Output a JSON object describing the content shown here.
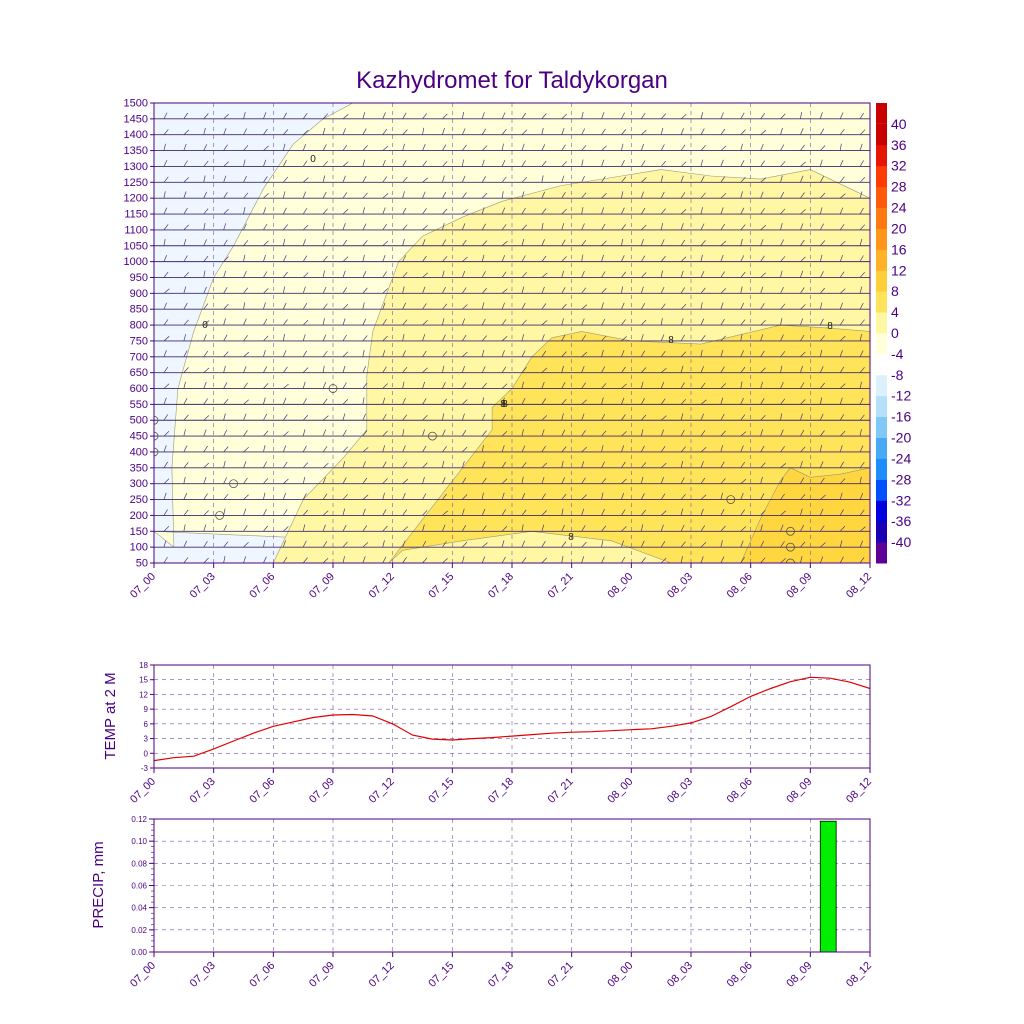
{
  "title": "Kazhydromet for Taldykorgan",
  "colors": {
    "axis": "#4b0082",
    "text": "#4b0082",
    "grid": "#7a5aa0",
    "temp_line": "#e00000",
    "precip_bar": "#00ee00",
    "contour": "#9a9a7a",
    "fill_neg": "#eef6ff",
    "fill_0_4": "#ffffd9",
    "fill_4_8": "#fff7a4",
    "fill_8_12": "#ffe359",
    "fill_12_16": "#ffd640",
    "colorbar": [
      "#5e0096",
      "#1a00b4",
      "#0000e0",
      "#0050ff",
      "#1e8cff",
      "#48aaf5",
      "#7fc8f8",
      "#b4e0fb",
      "#dcf0fd",
      "#ffffff",
      "#ffffd9",
      "#fff7a4",
      "#ffe359",
      "#ffcf3a",
      "#ffb226",
      "#ff961a",
      "#ff7810",
      "#ff5a0a",
      "#ff3c05",
      "#e61400",
      "#c80000"
    ]
  },
  "x_ticks": [
    "07_00",
    "07_03",
    "07_06",
    "07_09",
    "07_12",
    "07_15",
    "07_18",
    "07_21",
    "08_00",
    "08_03",
    "08_06",
    "08_09",
    "08_12"
  ],
  "chart_data": [
    {
      "type": "heatmap",
      "name": "cross-section",
      "title": "Kazhydromet for Taldykorgan",
      "x_hours": [
        0,
        36
      ],
      "y_levels": [
        "1500",
        "1450",
        "1400",
        "1350",
        "1300",
        "1250",
        "1200",
        "1150",
        "1100",
        "1050",
        "1000",
        "950",
        "900",
        "850",
        "800",
        "750",
        "700",
        "650",
        "600",
        "550",
        "500",
        "450",
        "400",
        "350",
        "300",
        "250",
        "200",
        "150",
        "100",
        "50"
      ],
      "ylim": [
        50,
        1500
      ],
      "colorbar_labels": [
        "40",
        "36",
        "32",
        "28",
        "24",
        "20",
        "16",
        "12",
        "8",
        "4",
        "0",
        "-4",
        "-8",
        "-12",
        "-16",
        "-20",
        "-24",
        "-28",
        "-32",
        "-36",
        "-40"
      ],
      "contour_labels": [
        "0",
        "0",
        "8",
        "8",
        "8",
        "8",
        "8"
      ],
      "contours": {
        "c0": [
          [
            0.0,
            150
          ],
          [
            1.0,
            100
          ],
          [
            0.9,
            350
          ],
          [
            1.2,
            600
          ],
          [
            2.0,
            780
          ],
          [
            3.0,
            950
          ],
          [
            4.0,
            1050
          ],
          [
            5.5,
            1230
          ],
          [
            7.0,
            1370
          ],
          [
            8.5,
            1450
          ],
          [
            10.0,
            1500
          ]
        ],
        "c4": [
          [
            6.0,
            50
          ],
          [
            7.5,
            250
          ],
          [
            9.5,
            380
          ],
          [
            10.7,
            470
          ],
          [
            10.7,
            640
          ],
          [
            11.0,
            780
          ],
          [
            12.3,
            1000
          ],
          [
            13.5,
            1080
          ],
          [
            15.5,
            1140
          ],
          [
            17.5,
            1190
          ],
          [
            20.5,
            1240
          ],
          [
            23.5,
            1270
          ],
          [
            25.5,
            1290
          ],
          [
            28.0,
            1270
          ],
          [
            30.5,
            1260
          ],
          [
            33.0,
            1290
          ],
          [
            35.0,
            1230
          ],
          [
            36.0,
            1200
          ]
        ],
        "c8": [
          [
            11.8,
            50
          ],
          [
            12.5,
            90
          ],
          [
            15.5,
            120
          ],
          [
            19.0,
            150
          ],
          [
            23.0,
            120
          ],
          [
            26.0,
            50
          ],
          [
            26.0,
            50
          ],
          [
            36.0,
            50
          ],
          [
            36.0,
            780
          ],
          [
            34.0,
            790
          ],
          [
            31.5,
            800
          ],
          [
            29.5,
            770
          ],
          [
            27.5,
            740
          ],
          [
            24.0,
            750
          ],
          [
            21.5,
            780
          ],
          [
            20.0,
            760
          ],
          [
            19.0,
            700
          ],
          [
            18.0,
            600
          ],
          [
            17.0,
            540
          ],
          [
            17.0,
            470
          ]
        ],
        "c12": [
          [
            29.5,
            50
          ],
          [
            30.5,
            190
          ],
          [
            31.5,
            310
          ],
          [
            32.0,
            350
          ],
          [
            33.0,
            320
          ],
          [
            34.5,
            330
          ],
          [
            36.0,
            350
          ],
          [
            36.0,
            50
          ]
        ]
      }
    },
    {
      "type": "line",
      "name": "temperature",
      "ylabel": "TEMP at 2 M",
      "ylim": [
        -3,
        18
      ],
      "y_ticks": [
        "18",
        "15",
        "12",
        "9",
        "6",
        "3",
        "0",
        "-3"
      ],
      "x": [
        0,
        1,
        2,
        3,
        4,
        5,
        6,
        7,
        8,
        9,
        10,
        11,
        12,
        13,
        14,
        15,
        16,
        17,
        18,
        19,
        20,
        21,
        22,
        23,
        24,
        25,
        26,
        27,
        28,
        29,
        30,
        31,
        32,
        33,
        34,
        35,
        36
      ],
      "values": [
        -1.5,
        -0.9,
        -0.6,
        0.9,
        2.5,
        4.1,
        5.5,
        6.4,
        7.3,
        7.8,
        7.9,
        7.6,
        6.0,
        3.7,
        2.9,
        2.7,
        3.0,
        3.2,
        3.5,
        3.8,
        4.1,
        4.3,
        4.4,
        4.6,
        4.8,
        5.0,
        5.5,
        6.2,
        7.5,
        9.5,
        11.6,
        13.2,
        14.6,
        15.5,
        15.3,
        14.5,
        13.2
      ]
    },
    {
      "type": "bar",
      "name": "precipitation",
      "ylabel": "PRECIP, mm",
      "ylim": [
        0,
        0.12
      ],
      "y_ticks": [
        "0.12",
        "0.10",
        "0.08",
        "0.06",
        "0.04",
        "0.02",
        "0.00"
      ],
      "bars": [
        {
          "x_start": 33.5,
          "x_end": 34.3,
          "value": 0.118
        }
      ]
    }
  ]
}
